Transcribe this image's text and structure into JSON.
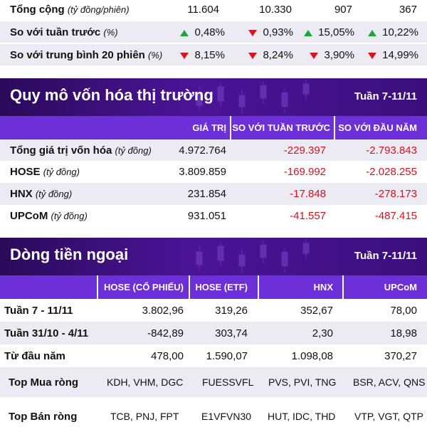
{
  "liquidity": {
    "total": {
      "label": "Tổng cộng",
      "unit": "(tỷ đồng/phiên)",
      "values": [
        "11.604",
        "10.330",
        "907",
        "367"
      ]
    },
    "vs_week": {
      "label": "So với tuần trước",
      "unit": "(%)",
      "values": [
        "0,48%",
        "0,93%",
        "15,05%",
        "10,22%"
      ],
      "directions": [
        "up",
        "down",
        "up",
        "up"
      ]
    },
    "vs_avg20": {
      "label": "So với trung bình 20 phiên",
      "unit": "(%)",
      "values": [
        "8,15%",
        "8,24%",
        "3,90%",
        "14,99%"
      ],
      "directions": [
        "down",
        "down",
        "down",
        "down"
      ]
    }
  },
  "market_cap": {
    "title": "Quy mô vốn hóa thị trường",
    "date": "Tuần 7-11/11",
    "headers": [
      "GIÁ TRỊ",
      "SO VỚI TUẦN TRƯỚC",
      "SO VỚI ĐẦU NĂM"
    ],
    "rows": [
      {
        "label": "Tổng giá trị vốn hóa",
        "unit": "(tỷ đồng)",
        "value": "4.972.764",
        "vs_week": "-229.397",
        "vs_year": "-2.793.843"
      },
      {
        "label": "HOSE",
        "unit": "(tỷ đồng)",
        "value": "3.809.859",
        "vs_week": "-169.992",
        "vs_year": "-2.028.255"
      },
      {
        "label": "HNX",
        "unit": "(tỷ đồng)",
        "value": "231.854",
        "vs_week": "-17.848",
        "vs_year": "-278.173"
      },
      {
        "label": "UPCoM",
        "unit": "(tỷ đồng)",
        "value": "931.051",
        "vs_week": "-41.557",
        "vs_year": "-487.415"
      }
    ]
  },
  "foreign_flow": {
    "title": "Dòng tiền ngoại",
    "date": "Tuần 7-11/11",
    "headers": [
      "HOSE (CỔ PHIẾU)",
      "HOSE (ETF)",
      "HNX",
      "UPCoM"
    ],
    "rows": [
      {
        "label": "Tuần 7 - 11/11",
        "values": [
          "3.802,96",
          "319,26",
          "352,67",
          "78,00"
        ]
      },
      {
        "label": "Tuần 31/10 - 4/11",
        "values": [
          "-842,89",
          "303,74",
          "2,30",
          "18,98"
        ]
      },
      {
        "label": "Từ đầu năm",
        "values": [
          "478,00",
          "1.590,07",
          "1.098,08",
          "370,27"
        ]
      },
      {
        "label": "Top Mua ròng",
        "values": [
          "KDH, VHM, DGC",
          "FUESSVFL",
          "PVS, PVI, TNG",
          "BSR, ACV, QNS"
        ]
      },
      {
        "label": "Top Bán ròng",
        "values": [
          "TCB, PNJ, FPT",
          "E1VFVN30",
          "HUT, IDC, THD",
          "VTP, VGT, QTP"
        ]
      }
    ]
  },
  "colors": {
    "up": "#1fa33a",
    "down": "#d9121b",
    "header_purple": "#6d2fd8",
    "banner_dark": "#2a0a5a"
  }
}
